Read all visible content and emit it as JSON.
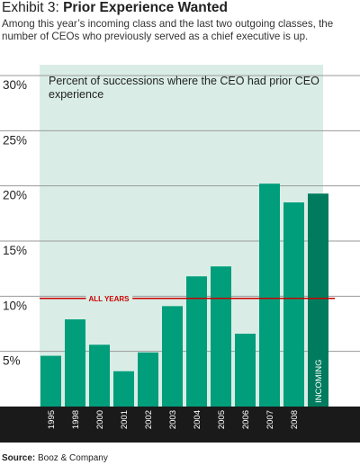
{
  "header": {
    "exhibit_label": "Exhibit 3:",
    "title": "Prior Experience Wanted",
    "subtitle": "Among this year’s incoming class and the last two outgoing classes, the number of CEOs who previously served as a chief executive is up."
  },
  "source": {
    "label": "Source:",
    "text": "Booz & Company"
  },
  "colors": {
    "bar": "#009e7b",
    "bar_incoming": "#007b5e",
    "plot_background": "#d9ede6",
    "reference_line": "#cc0000",
    "axis_band": "#1a1a1a"
  },
  "chart_data": {
    "type": "bar",
    "inner_label": "Percent of successions where the CEO had prior CEO experience",
    "categories": [
      "1995",
      "1998",
      "2000",
      "2001",
      "2002",
      "2003",
      "2004",
      "2005",
      "2006",
      "2007",
      "2008",
      "INCOMING"
    ],
    "values": [
      4.6,
      7.9,
      5.6,
      3.2,
      4.9,
      9.1,
      11.8,
      12.7,
      6.6,
      20.2,
      18.5,
      19.3
    ],
    "highlight_category": "INCOMING",
    "reference_line": {
      "label": "ALL YEARS",
      "value": 9.8
    },
    "y_ticks": [
      "5%",
      "10%",
      "15%",
      "20%",
      "25%",
      "30%"
    ],
    "y_tick_values": [
      5,
      10,
      15,
      20,
      25,
      30
    ],
    "ylim": [
      0,
      30
    ],
    "grid": true
  }
}
